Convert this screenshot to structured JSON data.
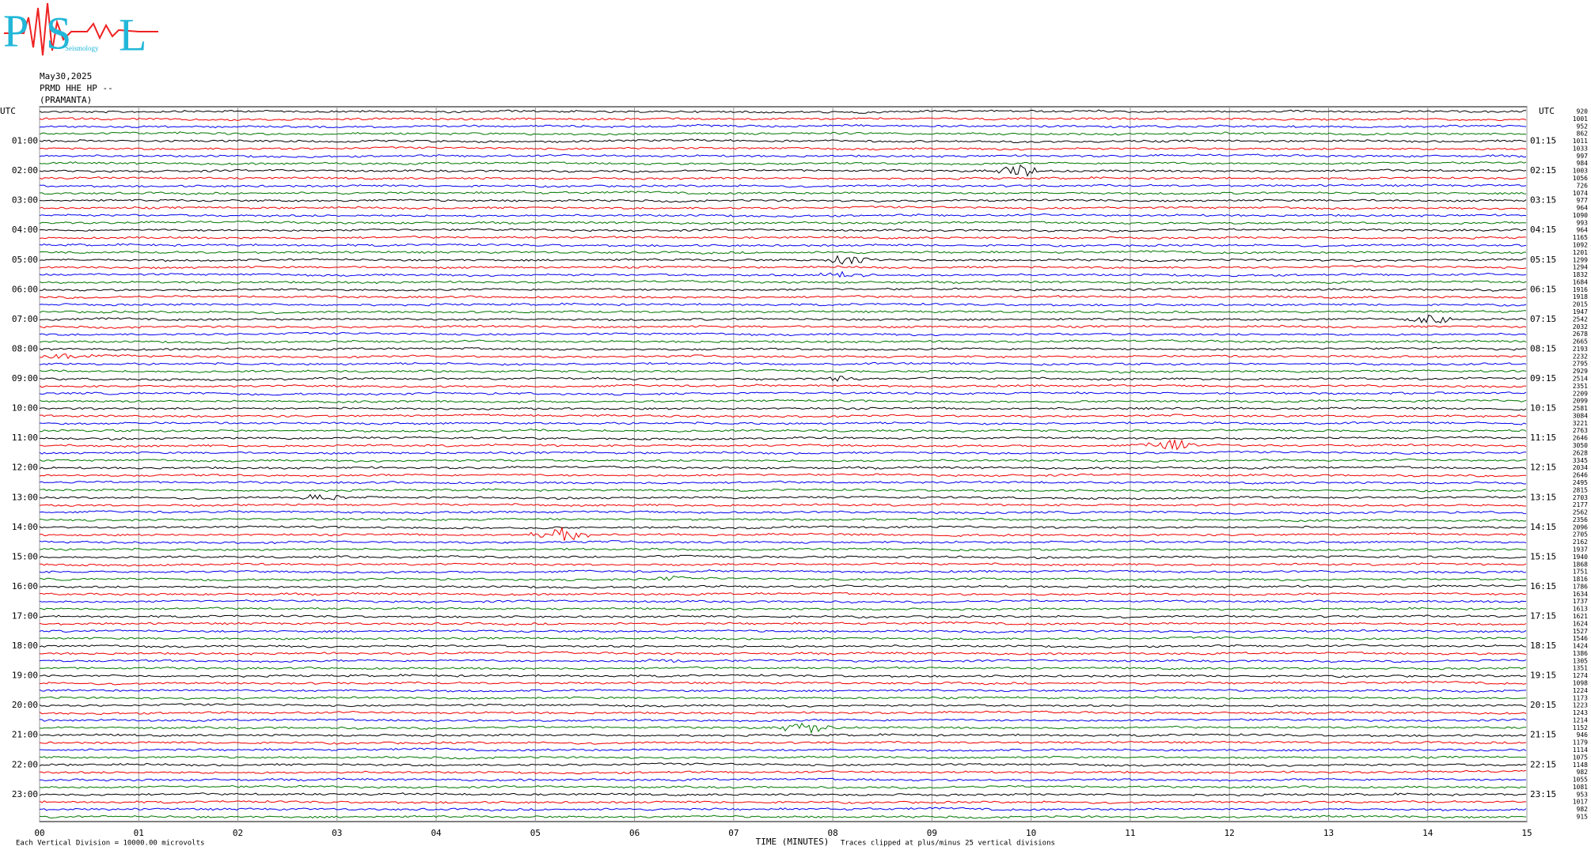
{
  "logo": {
    "initials": [
      "P",
      "S",
      "L"
    ],
    "word": "Seismology"
  },
  "header": {
    "date": "May30,2025",
    "station": "PRMD HHE HP --",
    "site": "(PRAMANTA)"
  },
  "left_axis": {
    "title": "UTC",
    "labels": [
      "01:00",
      "02:00",
      "03:00",
      "04:00",
      "05:00",
      "06:00",
      "07:00",
      "08:00",
      "09:00",
      "10:00",
      "11:00",
      "12:00",
      "13:00",
      "14:00",
      "15:00",
      "16:00",
      "17:00",
      "18:00",
      "19:00",
      "20:00",
      "21:00",
      "22:00",
      "23:00"
    ]
  },
  "right_axis": {
    "title": "UTC",
    "labels": [
      "01:15",
      "02:15",
      "03:15",
      "04:15",
      "05:15",
      "06:15",
      "07:15",
      "08:15",
      "09:15",
      "10:15",
      "11:15",
      "12:15",
      "13:15",
      "14:15",
      "15:15",
      "16:15",
      "17:15",
      "18:15",
      "19:15",
      "20:15",
      "21:15",
      "22:15",
      "23:15"
    ]
  },
  "row_values": [
    920,
    1001,
    952,
    862,
    1011,
    1033,
    997,
    984,
    1003,
    1056,
    726,
    1074,
    977,
    964,
    1090,
    993,
    964,
    1165,
    1092,
    1201,
    1299,
    1294,
    1832,
    1684,
    1916,
    1918,
    2015,
    1947,
    2542,
    2032,
    2678,
    2665,
    2193,
    2232,
    2795,
    2929,
    2514,
    2351,
    2209,
    2099,
    2581,
    3084,
    3221,
    2763,
    2646,
    3050,
    2628,
    3345,
    2034,
    2646,
    2495,
    2815,
    2703,
    2177,
    2562,
    2356,
    2096,
    2705,
    2162,
    1937,
    1940,
    1868,
    1751,
    1816,
    1786,
    1634,
    1737,
    1613,
    1621,
    1624,
    1527,
    1546,
    1424,
    1386,
    1305,
    1351,
    1274,
    1098,
    1224,
    1173,
    1223,
    1243,
    1214,
    1152,
    946,
    1179,
    1114,
    1075,
    1148,
    982,
    1055,
    1081,
    953,
    1017,
    982,
    915
  ],
  "x_axis": {
    "labels": [
      "00",
      "01",
      "02",
      "03",
      "04",
      "05",
      "06",
      "07",
      "08",
      "09",
      "10",
      "11",
      "12",
      "13",
      "14",
      "15"
    ],
    "title": "TIME (MINUTES)"
  },
  "footer": {
    "scale": "Each Vertical Division = 10000.00 microvolts",
    "clip": "Traces clipped at plus/minus 25 vertical divisions"
  }
}
